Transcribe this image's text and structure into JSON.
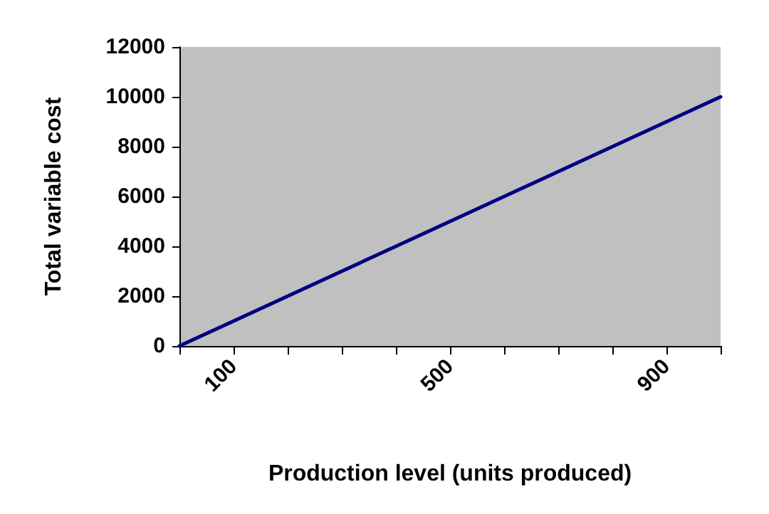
{
  "chart_data": {
    "type": "line",
    "xlabel": "Production level (units produced)",
    "ylabel": "Total variable cost",
    "categories": [
      null,
      "100",
      null,
      null,
      null,
      "500",
      null,
      null,
      null,
      "900",
      null
    ],
    "series": [
      {
        "color": "#000080",
        "values": [
          0,
          1000,
          2000,
          3000,
          4000,
          5000,
          6000,
          7000,
          8000,
          9000,
          10000
        ]
      }
    ],
    "ylim": [
      0,
      12000
    ],
    "yticks": [
      0,
      2000,
      4000,
      6000,
      8000,
      10000,
      12000
    ],
    "grid": false,
    "marker": "none",
    "line_style": "solid"
  }
}
